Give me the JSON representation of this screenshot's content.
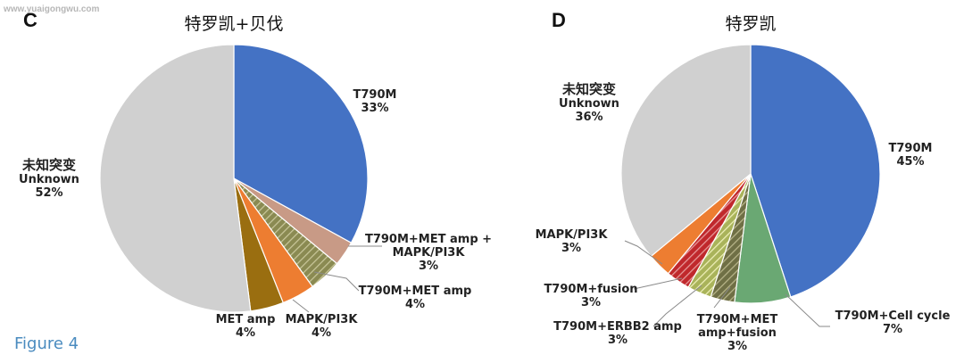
{
  "watermark": "www.yuaigongwu.com",
  "figure_label": "Figure 4",
  "colors": {
    "blue": "#4472c4",
    "grey": "#d0d0d0",
    "tan": "#c89a86",
    "gold": "#9a6e10",
    "orange": "#ed7d31",
    "green": "#6aa873",
    "red": "#c0282c",
    "yellow_green": "#c8d27a"
  },
  "chart_data": [
    {
      "type": "pie",
      "panel": "C",
      "title": "特罗凯+贝伐",
      "slices": [
        {
          "label": "T790M",
          "label_lines": [
            "T790M"
          ],
          "value": 33,
          "value_text": "33%",
          "color": "#4472c4",
          "pattern": "solid"
        },
        {
          "label": "T790M+MET amp + MAPK/PI3K",
          "label_lines": [
            "T790M+MET amp +",
            "MAPK/PI3K"
          ],
          "value": 3,
          "value_text": "3%",
          "color": "#c89a86",
          "pattern": "solid"
        },
        {
          "label": "T790M+MET amp",
          "label_lines": [
            "T790M+MET amp"
          ],
          "value": 4,
          "value_text": "4%",
          "color": "#8a8a52",
          "pattern": "hatch"
        },
        {
          "label": "MAPK/PI3K",
          "label_lines": [
            "MAPK/PI3K"
          ],
          "value": 4,
          "value_text": "4%",
          "color": "#ed7d31",
          "pattern": "solid"
        },
        {
          "label": "MET amp",
          "label_lines": [
            "MET amp"
          ],
          "value": 4,
          "value_text": "4%",
          "color": "#9a6e10",
          "pattern": "solid"
        },
        {
          "label": "Unknown",
          "label_lines": [
            "未知突变",
            "Unknown"
          ],
          "value": 52,
          "value_text": "52%",
          "color": "#d0d0d0",
          "pattern": "solid"
        }
      ]
    },
    {
      "type": "pie",
      "panel": "D",
      "title": "特罗凯",
      "slices": [
        {
          "label": "T790M",
          "label_lines": [
            "T790M"
          ],
          "value": 45,
          "value_text": "45%",
          "color": "#4472c4",
          "pattern": "solid"
        },
        {
          "label": "T790M+Cell cycle",
          "label_lines": [
            "T790M+Cell cycle"
          ],
          "value": 7,
          "value_text": "7%",
          "color": "#6aa873",
          "pattern": "solid"
        },
        {
          "label": "T790M+MET amp+fusion",
          "label_lines": [
            "T790M+MET",
            "amp+fusion"
          ],
          "value": 3,
          "value_text": "3%",
          "color": "#7a7a52",
          "pattern": "hatch"
        },
        {
          "label": "T790M+ERBB2 amp",
          "label_lines": [
            "T790M+ERBB2 amp"
          ],
          "value": 3,
          "value_text": "3%",
          "color": "#c8d27a",
          "pattern": "hatch"
        },
        {
          "label": "T790M+fusion",
          "label_lines": [
            "T790M+fusion"
          ],
          "value": 3,
          "value_text": "3%",
          "color": "#c0282c",
          "pattern": "hatch"
        },
        {
          "label": "MAPK/PI3K",
          "label_lines": [
            "MAPK/PI3K"
          ],
          "value": 3,
          "value_text": "3%",
          "color": "#ed7d31",
          "pattern": "solid"
        },
        {
          "label": "Unknown",
          "label_lines": [
            "未知突变",
            "Unknown"
          ],
          "value": 36,
          "value_text": "36%",
          "color": "#d0d0d0",
          "pattern": "solid"
        }
      ]
    }
  ]
}
